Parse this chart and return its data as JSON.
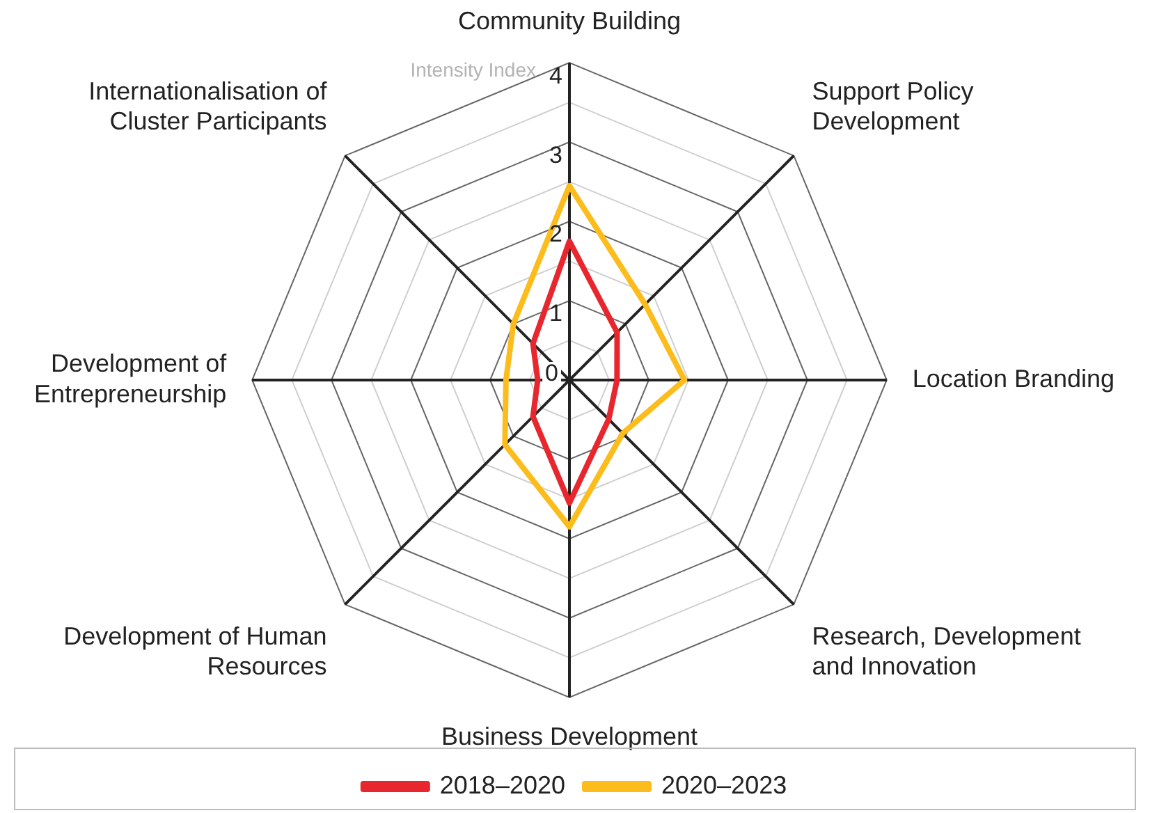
{
  "chart_data": {
    "type": "radar",
    "ylabel": "Intensity Index",
    "categories": [
      "Community Building",
      "Support Policy Development",
      "Location Branding",
      "Research, Development and Innovation",
      "Business Development",
      "Development of Human Resources",
      "Development of Entrepreneurship",
      "Internationalisation of Cluster Participants"
    ],
    "series": [
      {
        "name": "2018–2020",
        "color": "#e8262d",
        "values": [
          1.75,
          0.85,
          0.6,
          0.7,
          1.55,
          0.65,
          0.4,
          0.65
        ]
      },
      {
        "name": "2020–2023",
        "color": "#fcbc1c",
        "values": [
          2.45,
          1.35,
          1.45,
          0.95,
          1.85,
          1.15,
          0.8,
          1.0
        ]
      }
    ],
    "ylim": [
      0,
      4
    ],
    "yticks": [
      0,
      1,
      2,
      3,
      4
    ],
    "grid": true,
    "legend": "bottom",
    "marker": "none",
    "line_style": "solid"
  }
}
